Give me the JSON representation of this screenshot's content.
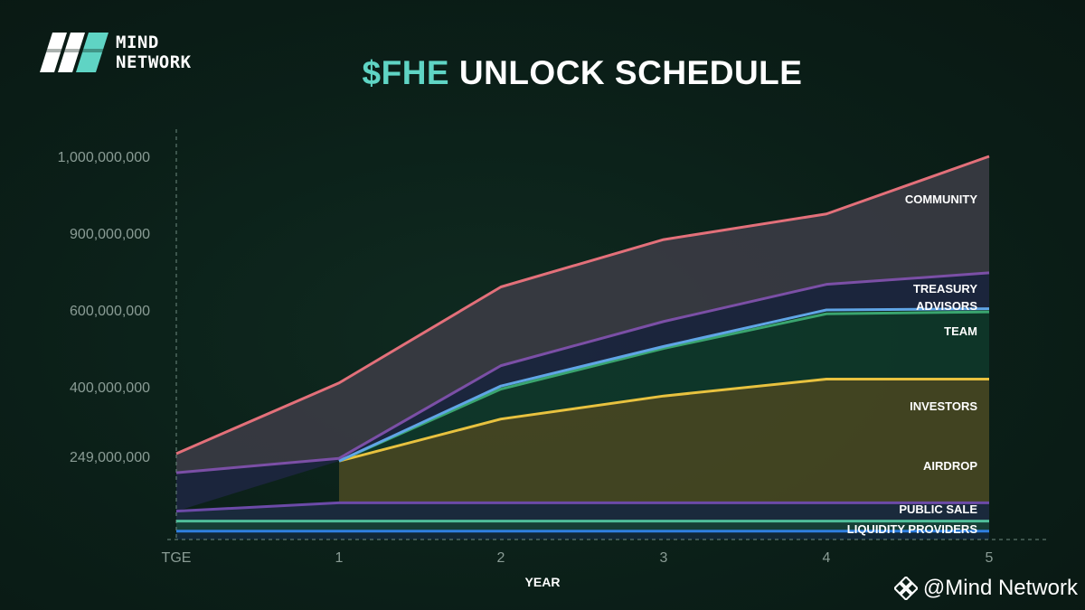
{
  "header": {
    "logo_line1": "MIND",
    "logo_line2": "NETWORK",
    "title_accent": "$FHE",
    "title_rest": "UNLOCK SCHEDULE"
  },
  "watermark": {
    "text": "@Mind Network",
    "icon": "binance-diamond-icon"
  },
  "colors": {
    "accent": "#5fd4c4",
    "community": "#e3707a",
    "treasury": "#7b4fa6",
    "advisors": "#60a5e6",
    "team": "#3aa56f",
    "investors": "#e8c23f",
    "airdrop": "#6c4aa8",
    "public_sale": "#4fbf9a",
    "liquidity_providers": "#2f7fe0"
  },
  "chart_data": {
    "type": "area",
    "title": "$FHE UNLOCK SCHEDULE",
    "xlabel": "YEAR",
    "ylabel": "",
    "categories": [
      "TGE",
      "1",
      "2",
      "3",
      "4",
      "5"
    ],
    "y_tick_labels": [
      "249,000,000",
      "400,000,000",
      "600,000,000",
      "900,000,000",
      "1,000,000,000"
    ],
    "y_tick_values": [
      249000000,
      400000000,
      600000000,
      900000000,
      1000000000
    ],
    "y_axis_note": "axis ticks are unevenly spaced; lines show cumulative stacked unlocked tokens",
    "ylim": [
      0,
      1000000000
    ],
    "grid": false,
    "series": [
      {
        "name": "LIQUIDITY PROVIDERS",
        "key": "liquidity_providers",
        "values": [
          25000000,
          25000000,
          25000000,
          25000000,
          25000000,
          25000000
        ]
      },
      {
        "name": "PUBLIC SALE",
        "key": "public_sale",
        "values": [
          55000000,
          55000000,
          55000000,
          55000000,
          55000000,
          55000000
        ]
      },
      {
        "name": "AIRDROP",
        "key": "airdrop",
        "values": [
          85000000,
          110000000,
          110000000,
          110000000,
          110000000,
          110000000
        ]
      },
      {
        "name": "INVESTORS",
        "key": "investors",
        "values": [
          null,
          235000000,
          330000000,
          380000000,
          420000000,
          420000000
        ]
      },
      {
        "name": "TEAM",
        "key": "team",
        "values": [
          null,
          235000000,
          395000000,
          500000000,
          590000000,
          595000000
        ]
      },
      {
        "name": "ADVISORS",
        "key": "advisors",
        "values": [
          null,
          235000000,
          402000000,
          505000000,
          600000000,
          605000000
        ]
      },
      {
        "name": "TREASURY",
        "key": "treasury",
        "values": [
          200000000,
          243000000,
          455000000,
          570000000,
          700000000,
          745000000
        ]
      },
      {
        "name": "COMMUNITY",
        "key": "community",
        "values": [
          255000000,
          410000000,
          690000000,
          875000000,
          925000000,
          1000000000
        ]
      }
    ]
  }
}
